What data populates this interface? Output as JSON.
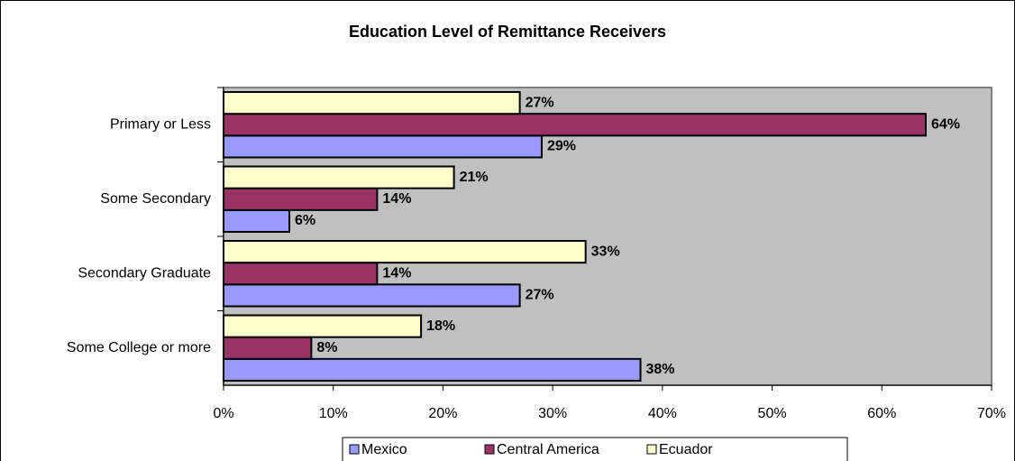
{
  "chart_data": {
    "type": "barh",
    "title": "Education Level of Remittance Receivers",
    "categories": [
      "Primary or Less",
      "Some Secondary",
      "Secondary Graduate",
      "Some College or more"
    ],
    "series": [
      {
        "name": "Mexico",
        "color": "#9999ff",
        "values": [
          29,
          6,
          27,
          38
        ],
        "value_labels": [
          "29%",
          "6%",
          "27%",
          "38%"
        ]
      },
      {
        "name": "Central America",
        "color": "#993366",
        "values": [
          64,
          14,
          14,
          8
        ],
        "value_labels": [
          "64%",
          "14%",
          "14%",
          "8%"
        ]
      },
      {
        "name": "Ecuador",
        "color": "#ffffcc",
        "values": [
          27,
          21,
          33,
          18
        ],
        "value_labels": [
          "27%",
          "21%",
          "33%",
          "18%"
        ]
      }
    ],
    "xlim": [
      0,
      70
    ],
    "xticks": [
      {
        "value": 0,
        "label": "0%"
      },
      {
        "value": 10,
        "label": "10%"
      },
      {
        "value": 20,
        "label": "20%"
      },
      {
        "value": 30,
        "label": "30%"
      },
      {
        "value": 40,
        "label": "40%"
      },
      {
        "value": 50,
        "label": "50%"
      },
      {
        "value": 60,
        "label": "60%"
      },
      {
        "value": 70,
        "label": "70%"
      }
    ],
    "grid": false,
    "legend": "bottom",
    "plot_background": "#c0c0c0"
  }
}
